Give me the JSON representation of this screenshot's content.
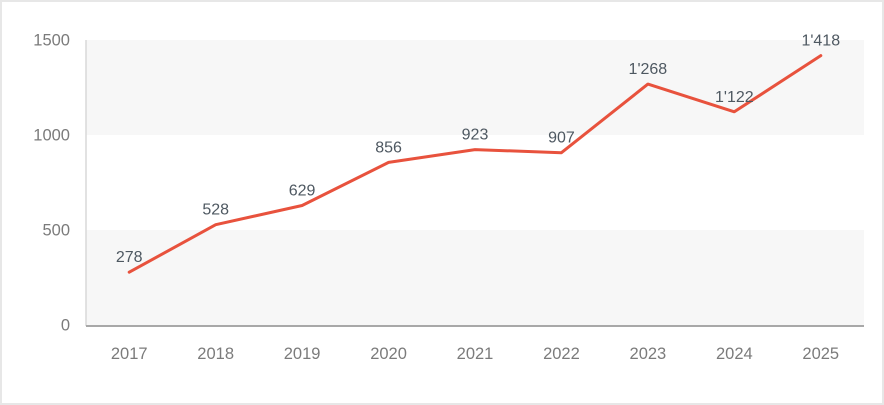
{
  "chart_data": {
    "type": "line",
    "title": "",
    "xlabel": "",
    "ylabel": "",
    "categories": [
      "2017",
      "2018",
      "2019",
      "2020",
      "2021",
      "2022",
      "2023",
      "2024",
      "2025"
    ],
    "values": [
      278,
      528,
      629,
      856,
      923,
      907,
      1268,
      1122,
      1418
    ],
    "value_labels": [
      "278",
      "528",
      "629",
      "856",
      "923",
      "907",
      "1'268",
      "1'122",
      "1'418"
    ],
    "ylim": [
      0,
      1500
    ],
    "yticks": [
      0,
      500,
      1000,
      1500
    ],
    "ytick_labels": [
      "0",
      "500",
      "1000",
      "1500"
    ],
    "legend": "none",
    "grid": "alternating-horizontal-bands",
    "colors": {
      "series_line": "#e8523d",
      "band_fill": "#f7f7f7",
      "y_axis_line": "#d9d9d9",
      "x_axis_line": "#a8a8a8",
      "tick_label": "#7b7b7b",
      "data_label": "#4e5861",
      "panel_border": "#e7e7e7",
      "background": "#ffffff"
    }
  }
}
